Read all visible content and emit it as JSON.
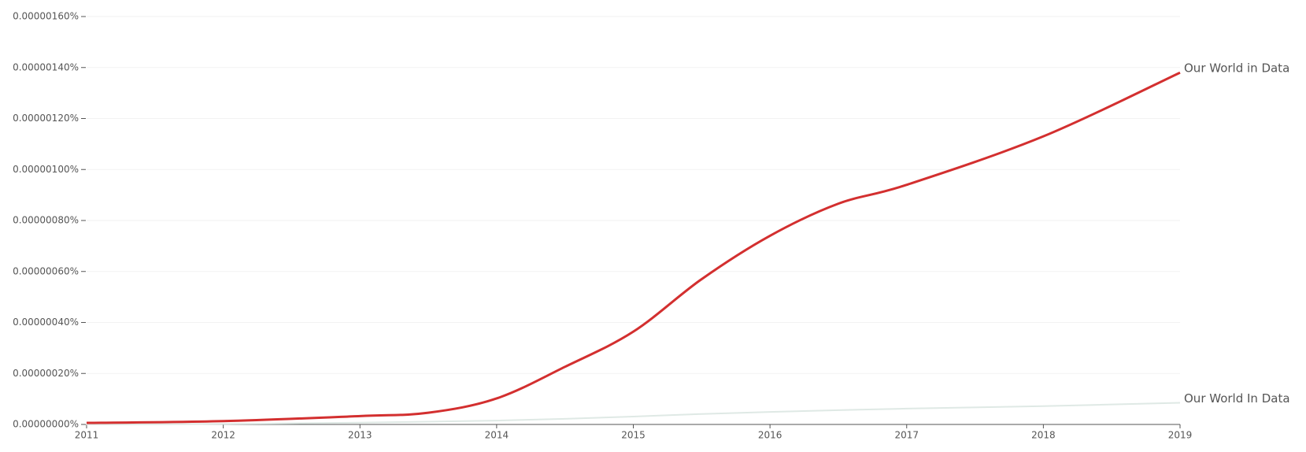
{
  "chart_data": {
    "type": "line",
    "x": [
      2011,
      2012,
      2013,
      2013.5,
      2014,
      2014.5,
      2015,
      2015.5,
      2016,
      2016.5,
      2017,
      2018,
      2019
    ],
    "series": [
      {
        "name": "Our World in Data",
        "color": "#d32f2f",
        "values": [
          6e-09,
          1.3e-08,
          3.3e-08,
          4.6e-08,
          1.02e-07,
          2.26e-07,
          3.64e-07,
          5.7e-07,
          7.4e-07,
          8.66e-07,
          9.4e-07,
          1.13e-06,
          1.38e-06
        ]
      },
      {
        "name": "Our World In Data",
        "color": "#dfe9e5",
        "values": [
          0,
          2e-09,
          7e-09,
          1.1e-08,
          1.5e-08,
          2.2e-08,
          3.1e-08,
          4.1e-08,
          4.9e-08,
          5.6e-08,
          6.2e-08,
          7.2e-08,
          8.5e-08
        ]
      }
    ],
    "xlim": [
      2011,
      2019
    ],
    "xticks": [
      2011,
      2012,
      2013,
      2014,
      2015,
      2016,
      2017,
      2018,
      2019
    ],
    "ylim": [
      0,
      1.6e-06
    ],
    "yticks": [
      {
        "value": 0,
        "label": "0.00000000%"
      },
      {
        "value": 2e-07,
        "label": "0.00000020%"
      },
      {
        "value": 4e-07,
        "label": "0.00000040%"
      },
      {
        "value": 6e-07,
        "label": "0.00000060%"
      },
      {
        "value": 8e-07,
        "label": "0.00000080%"
      },
      {
        "value": 1e-06,
        "label": "0.00000100%"
      },
      {
        "value": 1.2e-06,
        "label": "0.00000120%"
      },
      {
        "value": 1.4e-06,
        "label": "0.00000140%"
      },
      {
        "value": 1.6e-06,
        "label": "0.00000160%"
      }
    ],
    "grid": true
  }
}
